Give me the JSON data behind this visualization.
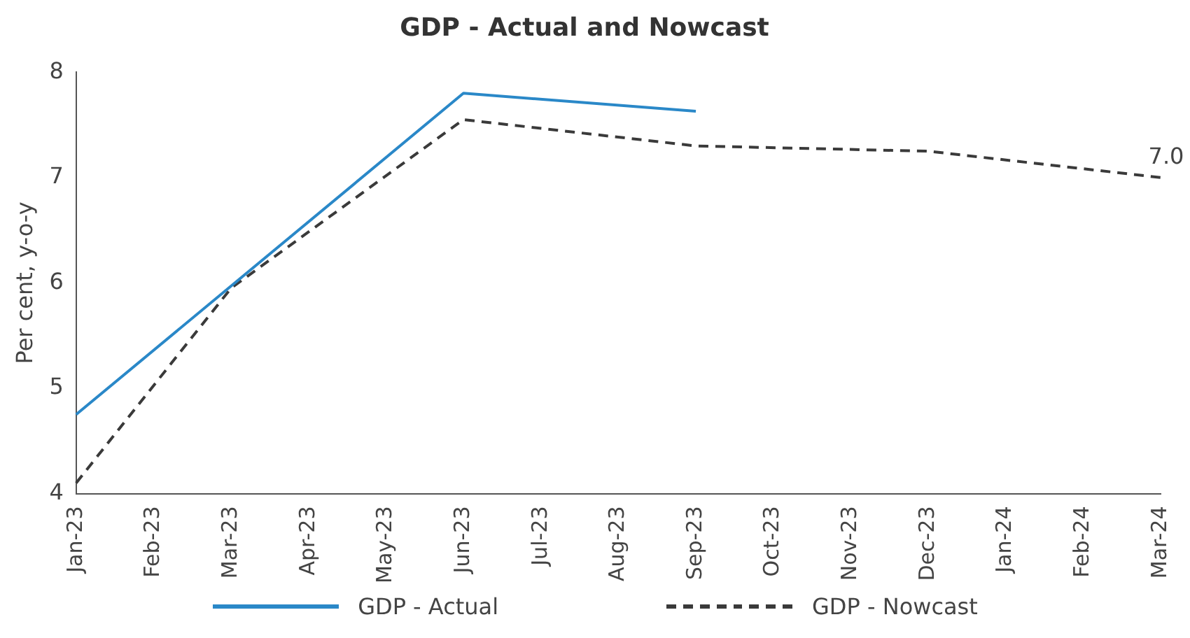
{
  "chart_data": {
    "type": "line",
    "title": "GDP - Actual and Nowcast",
    "ylabel": "Per cent, y-o-y",
    "categories": [
      "Jan-23",
      "Feb-23",
      "Mar-23",
      "Apr-23",
      "May-23",
      "Jun-23",
      "Jul-23",
      "Aug-23",
      "Sep-23",
      "Oct-23",
      "Nov-23",
      "Dec-23",
      "Jan-24",
      "Feb-24",
      "Mar-24"
    ],
    "series": [
      {
        "name": "GDP - Actual",
        "color": "#2a88c8",
        "line_style": "solid",
        "values": [
          4.75,
          null,
          null,
          null,
          null,
          7.8,
          null,
          null,
          7.63,
          null,
          null,
          null,
          null,
          null,
          null
        ]
      },
      {
        "name": "GDP - Nowcast",
        "color": "#3a3a3a",
        "line_style": "dashed",
        "values": [
          4.1,
          null,
          5.95,
          null,
          null,
          7.55,
          null,
          null,
          7.3,
          null,
          null,
          7.25,
          null,
          null,
          7.0
        ]
      }
    ],
    "ylim": [
      4,
      8
    ],
    "yticks": [
      4,
      5,
      6,
      7,
      8
    ],
    "grid": false,
    "legend": "bottom",
    "marker": "none",
    "annotations": [
      {
        "text": "7.0",
        "x": "Mar-24",
        "y": 7.0
      }
    ]
  }
}
